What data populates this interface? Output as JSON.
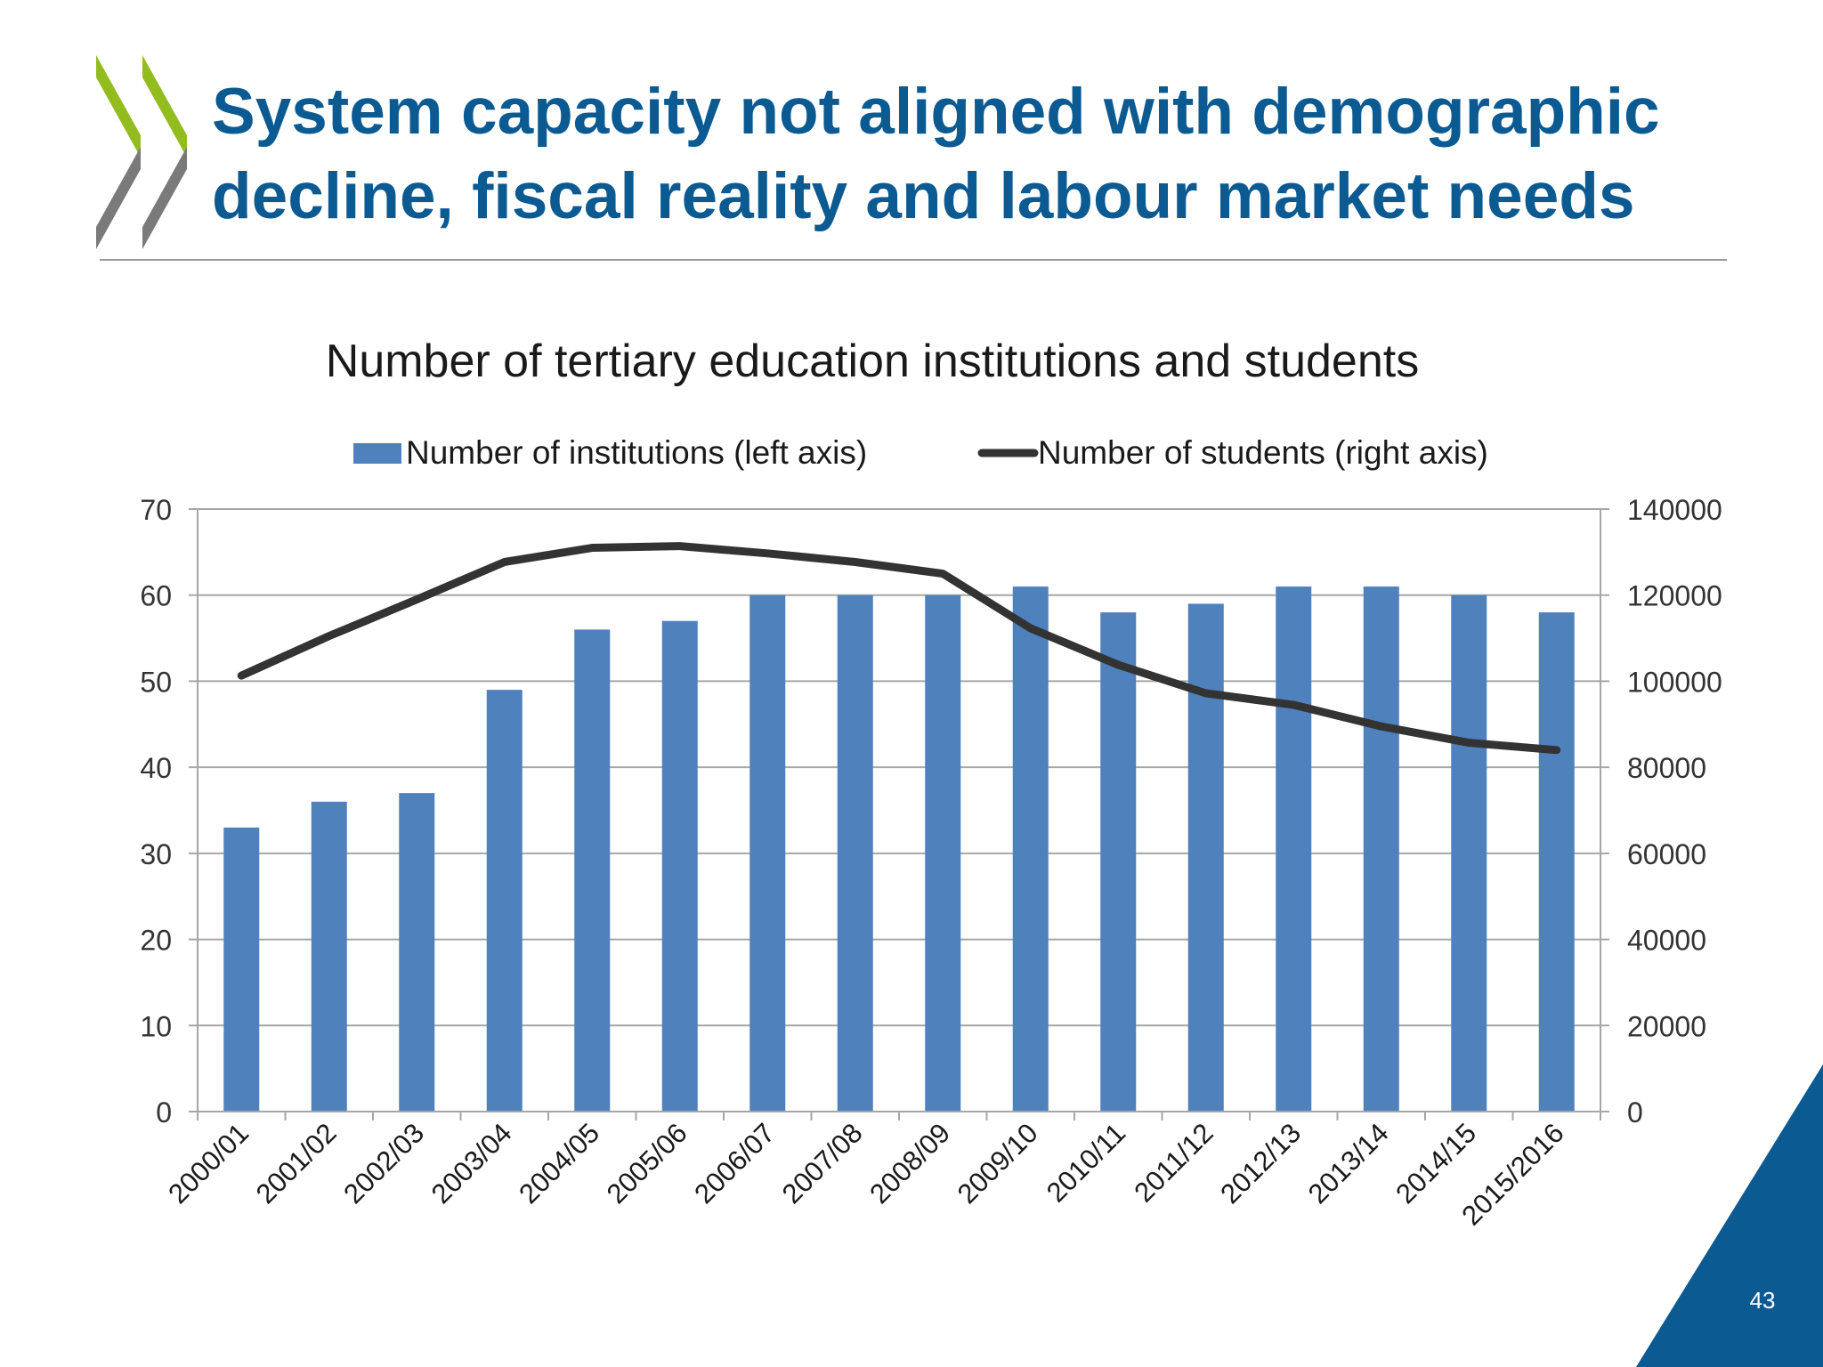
{
  "slide": {
    "title_line1": "System capacity not aligned with demographic",
    "title_line2": "decline, fiscal reality and labour market needs",
    "page_number": "43"
  },
  "colors": {
    "title": "#0b5a92",
    "bar": "#4f81bd",
    "line": "#333333",
    "logo_green": "#93bc1f",
    "logo_gray": "#7a7a7a",
    "corner": "#0b5a92"
  },
  "chart_data": {
    "type": "bar",
    "title": "Number of tertiary education institutions and students",
    "categories": [
      "2000/01",
      "2001/02",
      "2002/03",
      "2003/04",
      "2004/05",
      "2005/06",
      "2006/07",
      "2007/08",
      "2008/09",
      "2009/10",
      "2010/11",
      "2011/12",
      "2012/13",
      "2013/14",
      "2014/15",
      "2015/2016"
    ],
    "series": [
      {
        "name": "Number of institutions (left axis)",
        "type": "bar",
        "axis": "left",
        "values": [
          33,
          36,
          37,
          49,
          56,
          57,
          60,
          60,
          60,
          61,
          58,
          59,
          61,
          61,
          60,
          58
        ]
      },
      {
        "name": "Number of students (right axis)",
        "type": "line",
        "axis": "right",
        "values": [
          101300,
          110500,
          119000,
          127700,
          131000,
          131400,
          129700,
          127700,
          125000,
          112300,
          103800,
          97200,
          94500,
          89500,
          85700,
          84000
        ]
      }
    ],
    "ylim_left": [
      0,
      70
    ],
    "yticks_left": [
      "0",
      "10",
      "20",
      "30",
      "40",
      "50",
      "60",
      "70"
    ],
    "ylim_right": [
      0,
      140000
    ],
    "yticks_right": [
      "0",
      "20000",
      "40000",
      "60000",
      "80000",
      "100000",
      "120000",
      "140000"
    ],
    "grid": true,
    "legend": "top"
  }
}
